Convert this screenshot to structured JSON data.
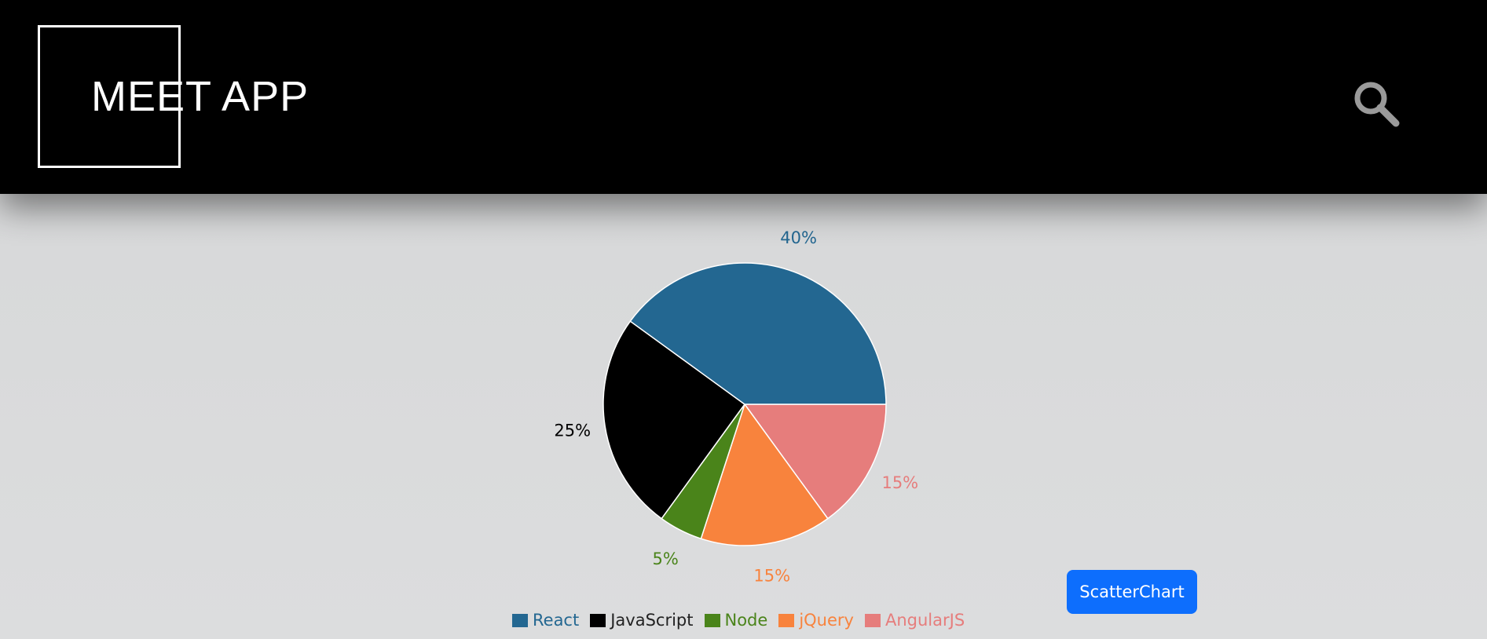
{
  "header": {
    "title": "MEET APP",
    "search_icon": "search-icon"
  },
  "scatter_button": {
    "label": "ScatterChart"
  },
  "chart_data": {
    "type": "pie",
    "categories": [
      "React",
      "JavaScript",
      "Node",
      "jQuery",
      "AngularJS"
    ],
    "values": [
      40,
      25,
      5,
      15,
      15
    ],
    "labels": [
      "40%",
      "25%",
      "5%",
      "15%",
      "15%"
    ],
    "colors": [
      "#236791",
      "#000000",
      "#4a841a",
      "#f8833d",
      "#e67d7c"
    ],
    "legend_placement": "bottom",
    "title": ""
  }
}
